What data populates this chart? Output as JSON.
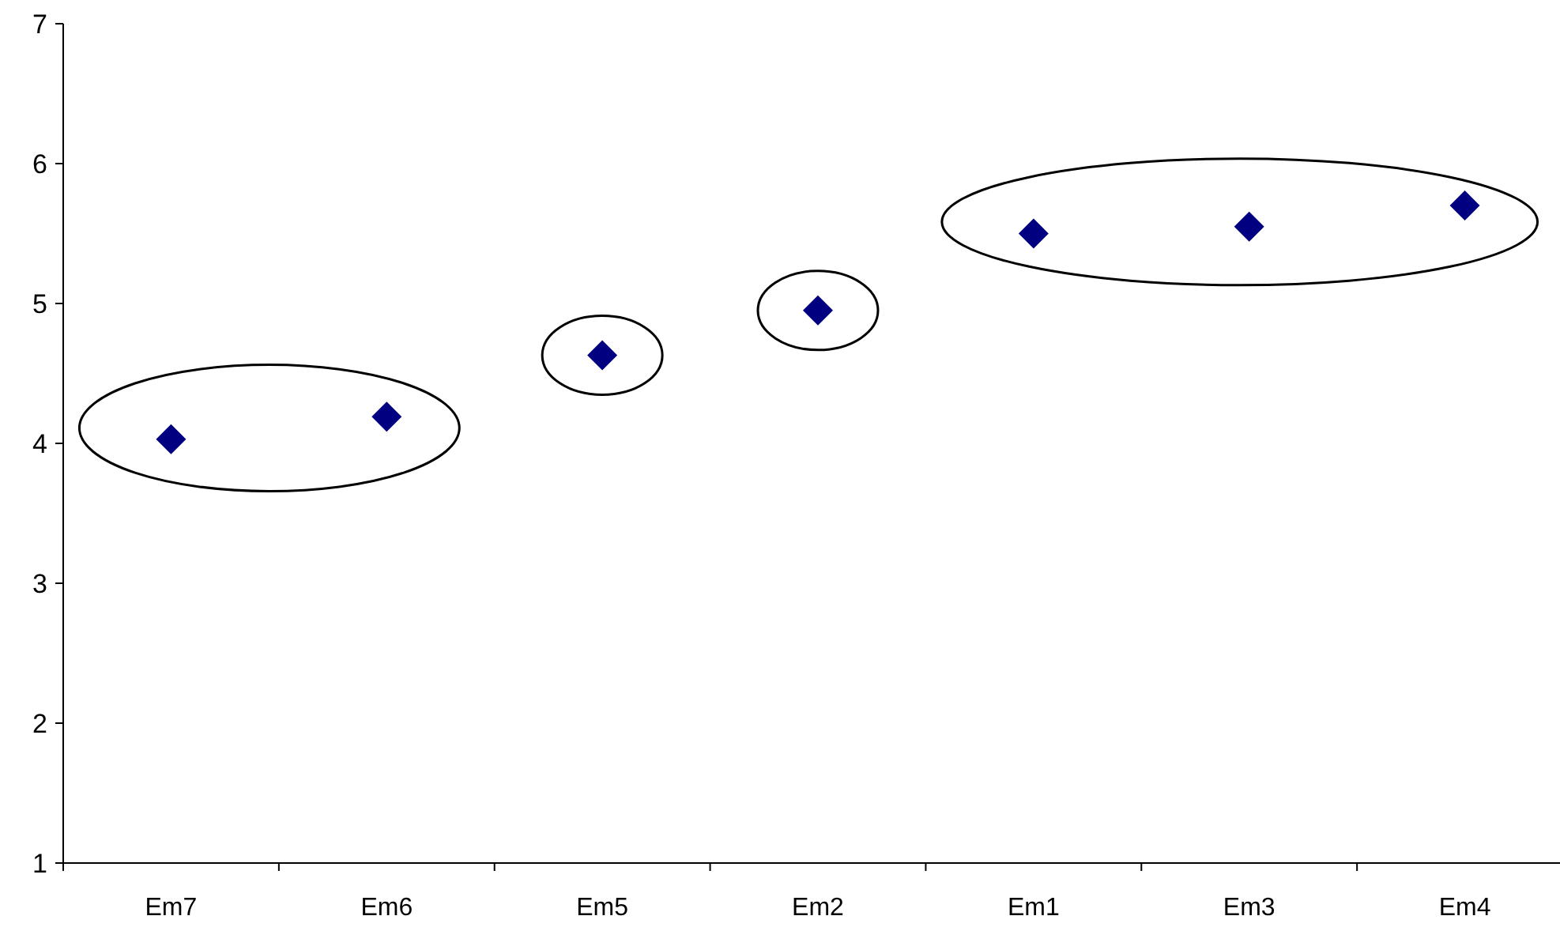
{
  "chart_data": {
    "type": "scatter",
    "categories": [
      "Em7",
      "Em6",
      "Em5",
      "Em2",
      "Em1",
      "Em3",
      "Em4"
    ],
    "series": [
      {
        "color": "#000080",
        "values": [
          4.03,
          4.19,
          4.63,
          4.95,
          5.5,
          5.55,
          5.7
        ]
      }
    ],
    "ylim": [
      1,
      7
    ],
    "yticks": [
      1,
      2,
      3,
      4,
      5,
      6,
      7
    ],
    "marker": "diamond"
  }
}
